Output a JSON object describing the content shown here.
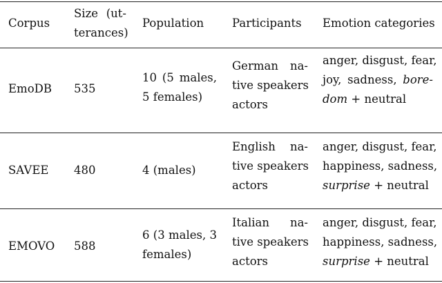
{
  "table": {
    "headers": {
      "corpus": "Corpus",
      "size_line1": "Size (ut-",
      "size_line2": "terances)",
      "population": "Population",
      "participants": "Participants",
      "emotions": "Emotion categories"
    },
    "rows": [
      {
        "corpus": "EmoDB",
        "size": "535",
        "population": [
          "10 (5 males,",
          "5 females)"
        ],
        "participants": [
          "German na-",
          "tive speakers",
          "actors"
        ],
        "emotions": {
          "line1": "anger, disgust, fear,",
          "line2_pre": "joy, sadness,",
          "line2_em": "bore-",
          "line3_em": "dom",
          "line3_post": " + neutral"
        }
      },
      {
        "corpus": "SAVEE",
        "size": "480",
        "population": [
          "4 (males)"
        ],
        "participants": [
          "English na-",
          "tive speakers",
          "actors"
        ],
        "emotions": {
          "line1": "anger, disgust, fear,",
          "line2": "happiness, sadness,",
          "line3_em": "surprise",
          "line3_post": " + neutral"
        }
      },
      {
        "corpus": "EMOVO",
        "size": "588",
        "population": [
          "6 (3 males, 3",
          "females)"
        ],
        "participants": [
          "Italian na-",
          "tive speakers",
          "actors"
        ],
        "emotions": {
          "line1": "anger, disgust, fear,",
          "line2": "happiness, sadness,",
          "line3_em": "surprise",
          "line3_post": " + neutral"
        }
      }
    ]
  }
}
